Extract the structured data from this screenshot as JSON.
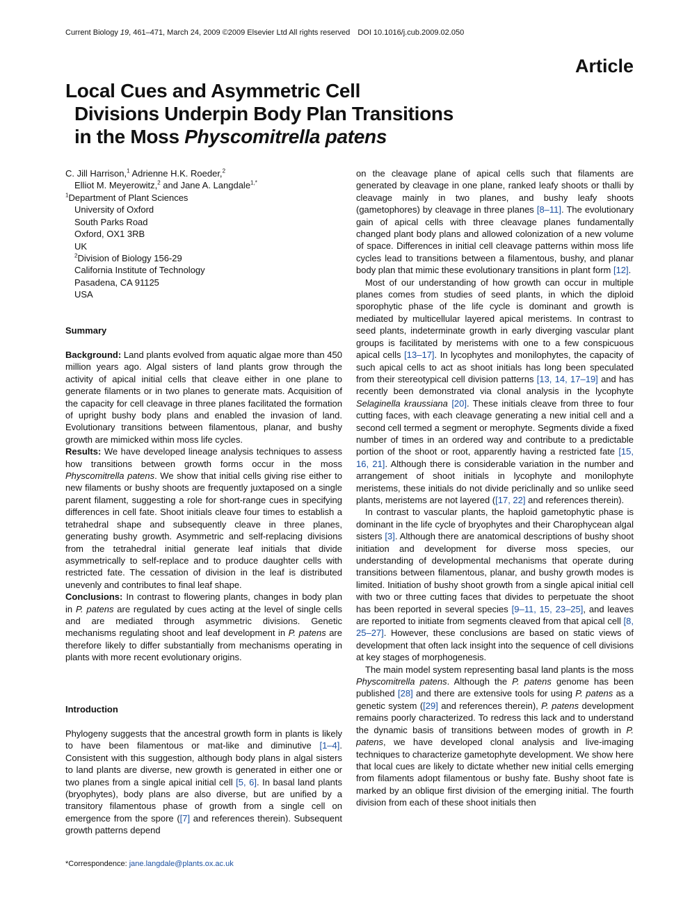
{
  "header": {
    "citation": [
      "Current Biology ",
      {
        "italic": "19"
      },
      ", 461–471, March 24, 2009 ©2009 Elsevier Ltd All rights reserved"
    ],
    "doi": "DOI 10.1016/j.cub.2009.02.050",
    "article_label": "Article"
  },
  "title": [
    [
      "Local Cues and Asymmetric Cell"
    ],
    [
      "Divisions Underpin Body Plan Transitions"
    ],
    [
      "in the Moss ",
      {
        "italic": "Physcomitrella patens"
      }
    ]
  ],
  "authors": [
    [
      "C. Jill Harrison,",
      {
        "sup": "1"
      },
      " Adrienne H.K. Roeder,",
      {
        "sup": "2"
      }
    ],
    [
      "Elliot M. Meyerowitz,",
      {
        "sup": "2"
      },
      " and Jane A. Langdale",
      {
        "sup": "1,*"
      }
    ]
  ],
  "affiliations": [
    [
      {
        "sup": "1"
      },
      "Department of Plant Sciences"
    ],
    [
      "University of Oxford"
    ],
    [
      "South Parks Road"
    ],
    [
      "Oxford, OX1 3RB"
    ],
    [
      "UK"
    ],
    [
      {
        "sup": "2"
      },
      "Division of Biology 156-29"
    ],
    [
      "California Institute of Technology"
    ],
    [
      "Pasadena, CA 91125"
    ],
    [
      "USA"
    ]
  ],
  "summary": {
    "heading": "Summary",
    "paragraphs": [
      [
        {
          "bold": "Background:"
        },
        " Land plants evolved from aquatic algae more than 450 million years ago. Algal sisters of land plants grow through the activity of apical initial cells that cleave either in one plane to generate filaments or in two planes to generate mats. Acquisition of the capacity for cell cleavage in three planes facilitated the formation of upright bushy body plans and enabled the invasion of land. Evolutionary transitions between filamentous, planar, and bushy growth are mimicked within moss life cycles."
      ],
      [
        {
          "bold": "Results:"
        },
        " We have developed lineage analysis techniques to assess how transitions between growth forms occur in the moss ",
        {
          "italic": "Physcomitrella patens"
        },
        ". We show that initial cells giving rise either to new filaments or bushy shoots are frequently juxtaposed on a single parent filament, suggesting a role for short-range cues in specifying differences in cell fate. Shoot initials cleave four times to establish a tetrahedral shape and subsequently cleave in three planes, generating bushy growth. Asymmetric and self-replacing divisions from the tetrahedral initial generate leaf initials that divide asymmetrically to self-replace and to produce daughter cells with restricted fate. The cessation of division in the leaf is distributed unevenly and contributes to final leaf shape."
      ],
      [
        {
          "bold": "Conclusions:"
        },
        " In contrast to flowering plants, changes in body plan in ",
        {
          "italic": "P. patens"
        },
        " are regulated by cues acting at the level of single cells and are mediated through asymmetric divisions. Genetic mechanisms regulating shoot and leaf development in ",
        {
          "italic": "P. patens"
        },
        " are therefore likely to differ substantially from mechanisms operating in plants with more recent evolutionary origins."
      ]
    ]
  },
  "introduction": {
    "heading": "Introduction",
    "left_column": [
      [
        "Phylogeny suggests that the ancestral growth form in plants is likely to have been filamentous or mat-like and diminutive ",
        {
          "ref": "[1–4]"
        },
        ". Consistent with this suggestion, although body plans in algal sisters to land plants are diverse, new growth is generated in either one or two planes from a single apical initial cell ",
        {
          "ref": "[5, 6]"
        },
        ". In basal land plants (bryophytes), body plans are also diverse, but are unified by a transitory filamentous phase of growth from a single cell on emergence from the spore (",
        {
          "ref": "[7]"
        },
        " and references therein). Subsequent growth patterns depend"
      ]
    ],
    "right_column": [
      [
        "on the cleavage plane of apical cells such that filaments are generated by cleavage in one plane, ranked leafy shoots or thalli by cleavage mainly in two planes, and bushy leafy shoots (gametophores) by cleavage in three planes ",
        {
          "ref": "[8–11]"
        },
        ". The evolutionary gain of apical cells with three cleavage planes fundamentally changed plant body plans and allowed colonization of a new volume of space. Differences in initial cell cleavage patterns within moss life cycles lead to transitions between a filamentous, bushy, and planar body plan that mimic these evolutionary transitions in plant form ",
        {
          "ref": "[12]"
        },
        "."
      ],
      [
        "Most of our understanding of how growth can occur in multiple planes comes from studies of seed plants, in which the diploid sporophytic phase of the life cycle is dominant and growth is mediated by multicellular layered apical meristems. In contrast to seed plants, indeterminate growth in early diverging vascular plant groups is facilitated by meristems with one to a few conspicuous apical cells ",
        {
          "ref": "[13–17]"
        },
        ". In lycophytes and monilophytes, the capacity of such apical cells to act as shoot initials has long been speculated from their stereotypical cell division patterns ",
        {
          "ref": "[13, 14, 17–19]"
        },
        " and has recently been demonstrated via clonal analysis in the lycophyte ",
        {
          "italic": "Selaginella kraussiana"
        },
        " ",
        {
          "ref": "[20]"
        },
        ". These initials cleave from three to four cutting faces, with each cleavage generating a new initial cell and a second cell termed a segment or merophyte. Segments divide a fixed number of times in an ordered way and contribute to a predictable portion of the shoot or root, apparently having a restricted fate ",
        {
          "ref": "[15, 16, 21]"
        },
        ". Although there is considerable variation in the number and arrangement of shoot initials in lycophyte and monilophyte meristems, these initials do not divide periclinally and so unlike seed plants, meristems are not layered (",
        {
          "ref": "[17, 22]"
        },
        " and references therein)."
      ],
      [
        "In contrast to vascular plants, the haploid gametophytic phase is dominant in the life cycle of bryophytes and their Charophycean algal sisters ",
        {
          "ref": "[3]"
        },
        ". Although there are anatomical descriptions of bushy shoot initiation and development for diverse moss species, our understanding of developmental mechanisms that operate during transitions between filamentous, planar, and bushy growth modes is limited. Initiation of bushy shoot growth from a single apical initial cell with two or three cutting faces that divides to perpetuate the shoot has been reported in several species ",
        {
          "ref": "[9–11, 15, 23–25]"
        },
        ", and leaves are reported to initiate from segments cleaved from that apical cell ",
        {
          "ref": "[8, 25–27]"
        },
        ". However, these conclusions are based on static views of development that often lack insight into the sequence of cell divisions at key stages of morphogenesis."
      ],
      [
        "The main model system representing basal land plants is the moss ",
        {
          "italic": "Physcomitrella patens"
        },
        ". Although the ",
        {
          "italic": "P. patens"
        },
        " genome has been published ",
        {
          "ref": "[28]"
        },
        " and there are extensive tools for using ",
        {
          "italic": "P. patens"
        },
        " as a genetic system (",
        {
          "ref": "[29]"
        },
        " and references therein), ",
        {
          "italic": "P. patens"
        },
        " development remains poorly characterized. To redress this lack and to understand the dynamic basis of transitions between modes of growth in ",
        {
          "italic": "P. patens"
        },
        ", we have developed clonal analysis and live-imaging techniques to characterize gametophyte development. We show here that local cues are likely to dictate whether new initial cells emerging from filaments adopt filamentous or bushy fate. Bushy shoot fate is marked by an oblique first division of the emerging initial. The fourth division from each of these shoot initials then"
      ]
    ]
  },
  "correspondence": [
    "*Correspondence: ",
    {
      "ref": "jane.langdale@plants.ox.ac.uk"
    }
  ]
}
